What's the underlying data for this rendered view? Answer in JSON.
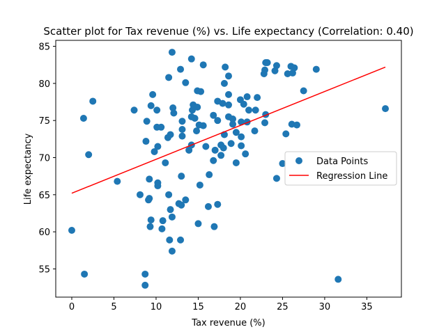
{
  "chart_data": {
    "type": "scatter",
    "title": "Scatter plot for Tax revenue (%) vs. Life expectancy (Correlation: 0.40)",
    "xlabel": "Tax revenue (%)",
    "ylabel": "Life expectancy",
    "xlim": [
      -1.9,
      39.1
    ],
    "ylim": [
      51.2,
      85.8
    ],
    "xticks": [
      0,
      5,
      10,
      15,
      20,
      25,
      30,
      35
    ],
    "yticks": [
      55,
      60,
      65,
      70,
      75,
      80,
      85
    ],
    "grid": false,
    "legend_position": "center-right",
    "colors": {
      "points": "#1f77b4",
      "regression": "#ff0000"
    },
    "series": [
      {
        "name": "Data Points",
        "kind": "scatter",
        "points": [
          [
            0.0,
            60.2
          ],
          [
            1.5,
            54.3
          ],
          [
            1.4,
            75.3
          ],
          [
            2.0,
            70.4
          ],
          [
            2.5,
            77.6
          ],
          [
            5.4,
            66.8
          ],
          [
            7.4,
            76.4
          ],
          [
            8.1,
            65.0
          ],
          [
            8.7,
            54.3
          ],
          [
            8.7,
            52.8
          ],
          [
            8.8,
            72.2
          ],
          [
            8.9,
            74.9
          ],
          [
            9.1,
            64.3
          ],
          [
            9.2,
            64.5
          ],
          [
            9.2,
            67.1
          ],
          [
            9.3,
            60.7
          ],
          [
            9.4,
            61.6
          ],
          [
            9.4,
            77.0
          ],
          [
            9.6,
            78.5
          ],
          [
            9.8,
            70.8
          ],
          [
            10.1,
            74.1
          ],
          [
            10.1,
            76.4
          ],
          [
            10.2,
            71.5
          ],
          [
            10.2,
            66.6
          ],
          [
            10.2,
            66.2
          ],
          [
            10.6,
            74.1
          ],
          [
            10.7,
            60.4
          ],
          [
            10.8,
            61.5
          ],
          [
            11.1,
            69.3
          ],
          [
            11.4,
            72.7
          ],
          [
            11.5,
            80.8
          ],
          [
            11.5,
            65.0
          ],
          [
            11.6,
            58.9
          ],
          [
            11.7,
            63.0
          ],
          [
            11.7,
            73.1
          ],
          [
            11.9,
            84.2
          ],
          [
            11.9,
            57.4
          ],
          [
            11.9,
            62.0
          ],
          [
            12.0,
            76.7
          ],
          [
            12.1,
            76.0
          ],
          [
            12.7,
            63.8
          ],
          [
            12.9,
            81.9
          ],
          [
            12.9,
            58.9
          ],
          [
            13.0,
            63.6
          ],
          [
            13.0,
            67.5
          ],
          [
            13.1,
            73.8
          ],
          [
            13.1,
            72.9
          ],
          [
            13.1,
            74.9
          ],
          [
            13.5,
            80.1
          ],
          [
            13.5,
            64.3
          ],
          [
            13.9,
            71.0
          ],
          [
            14.2,
            83.3
          ],
          [
            14.2,
            75.5
          ],
          [
            14.2,
            71.7
          ],
          [
            14.3,
            76.4
          ],
          [
            14.4,
            77.1
          ],
          [
            14.6,
            75.3
          ],
          [
            14.8,
            73.6
          ],
          [
            14.9,
            76.8
          ],
          [
            14.9,
            79.0
          ],
          [
            15.0,
            61.1
          ],
          [
            15.1,
            74.4
          ],
          [
            15.2,
            66.3
          ],
          [
            15.3,
            78.9
          ],
          [
            15.6,
            82.5
          ],
          [
            15.6,
            74.3
          ],
          [
            15.9,
            71.5
          ],
          [
            16.2,
            63.4
          ],
          [
            16.3,
            67.7
          ],
          [
            16.8,
            69.6
          ],
          [
            16.8,
            75.7
          ],
          [
            16.9,
            60.7
          ],
          [
            17.0,
            71.0
          ],
          [
            17.3,
            75.0
          ],
          [
            17.3,
            77.6
          ],
          [
            17.3,
            63.7
          ],
          [
            17.7,
            71.7
          ],
          [
            17.7,
            70.3
          ],
          [
            17.9,
            77.3
          ],
          [
            18.0,
            71.3
          ],
          [
            18.1,
            73.1
          ],
          [
            18.1,
            80.0
          ],
          [
            18.2,
            82.2
          ],
          [
            18.6,
            78.5
          ],
          [
            18.6,
            81.0
          ],
          [
            18.6,
            77.1
          ],
          [
            18.6,
            75.5
          ],
          [
            18.9,
            71.9
          ],
          [
            19.1,
            75.2
          ],
          [
            19.1,
            74.5
          ],
          [
            19.5,
            69.3
          ],
          [
            19.5,
            73.4
          ],
          [
            20.0,
            77.8
          ],
          [
            20.1,
            71.6
          ],
          [
            20.1,
            72.8
          ],
          [
            20.1,
            74.8
          ],
          [
            20.4,
            77.2
          ],
          [
            20.6,
            70.5
          ],
          [
            20.8,
            74.8
          ],
          [
            20.8,
            78.2
          ],
          [
            21.0,
            76.4
          ],
          [
            21.7,
            73.6
          ],
          [
            21.8,
            76.4
          ],
          [
            22.0,
            78.1
          ],
          [
            22.8,
            81.3
          ],
          [
            22.9,
            74.7
          ],
          [
            22.9,
            81.8
          ],
          [
            23.0,
            75.8
          ],
          [
            23.0,
            82.8
          ],
          [
            23.2,
            82.8
          ],
          [
            24.1,
            81.7
          ],
          [
            24.3,
            82.4
          ],
          [
            24.3,
            67.2
          ],
          [
            25.0,
            69.2
          ],
          [
            25.4,
            73.2
          ],
          [
            25.6,
            81.3
          ],
          [
            26.0,
            82.3
          ],
          [
            26.1,
            74.5
          ],
          [
            26.2,
            81.4
          ],
          [
            26.4,
            82.1
          ],
          [
            26.7,
            74.4
          ],
          [
            27.5,
            79.0
          ],
          [
            29.0,
            81.9
          ],
          [
            31.6,
            53.6
          ],
          [
            37.2,
            76.6
          ]
        ]
      },
      {
        "name": "Regression Line",
        "kind": "line",
        "points": [
          [
            0.0,
            65.2
          ],
          [
            37.2,
            82.2
          ]
        ]
      }
    ]
  }
}
